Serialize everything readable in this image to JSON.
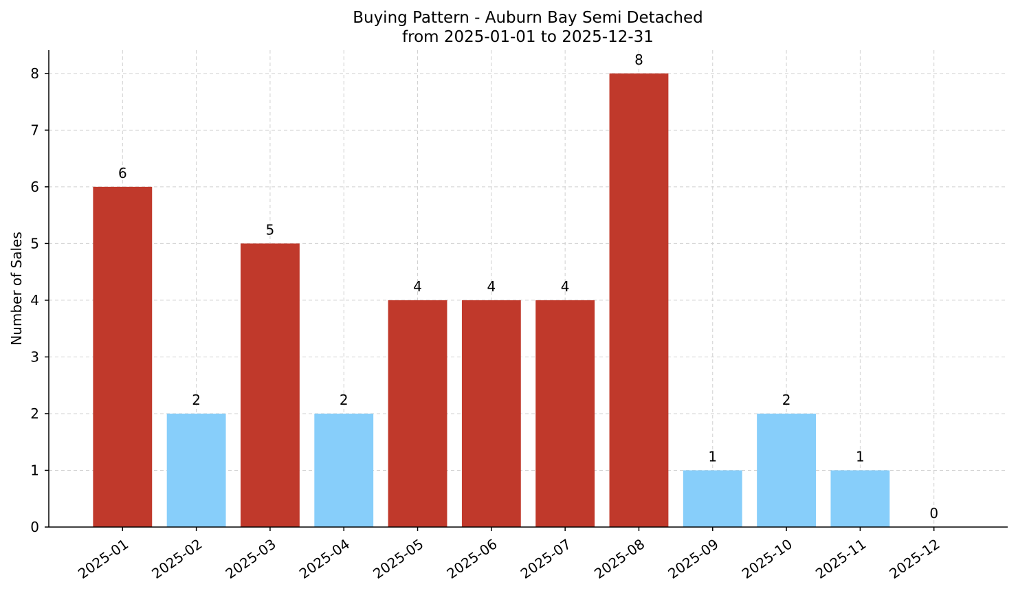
{
  "chart_data": {
    "type": "bar",
    "title": "Buying Pattern - Auburn Bay Semi Detached",
    "subtitle": "from 2025-01-01 to 2025-12-31",
    "y_label": "Number of Sales",
    "categories": [
      "2025-01",
      "2025-02",
      "2025-03",
      "2025-04",
      "2025-05",
      "2025-06",
      "2025-07",
      "2025-08",
      "2025-09",
      "2025-10",
      "2025-11",
      "2025-12"
    ],
    "values": [
      6,
      2,
      5,
      2,
      4,
      4,
      4,
      8,
      1,
      2,
      1,
      0
    ],
    "colors": [
      "#c0392b",
      "#87cefa",
      "#c0392b",
      "#87cefa",
      "#c0392b",
      "#c0392b",
      "#c0392b",
      "#c0392b",
      "#87cefa",
      "#87cefa",
      "#87cefa",
      "#87cefa"
    ],
    "ylim": [
      0,
      8.41
    ],
    "yticks": [
      0,
      1,
      2,
      3,
      4,
      5,
      6,
      7,
      8
    ],
    "grid": true
  }
}
